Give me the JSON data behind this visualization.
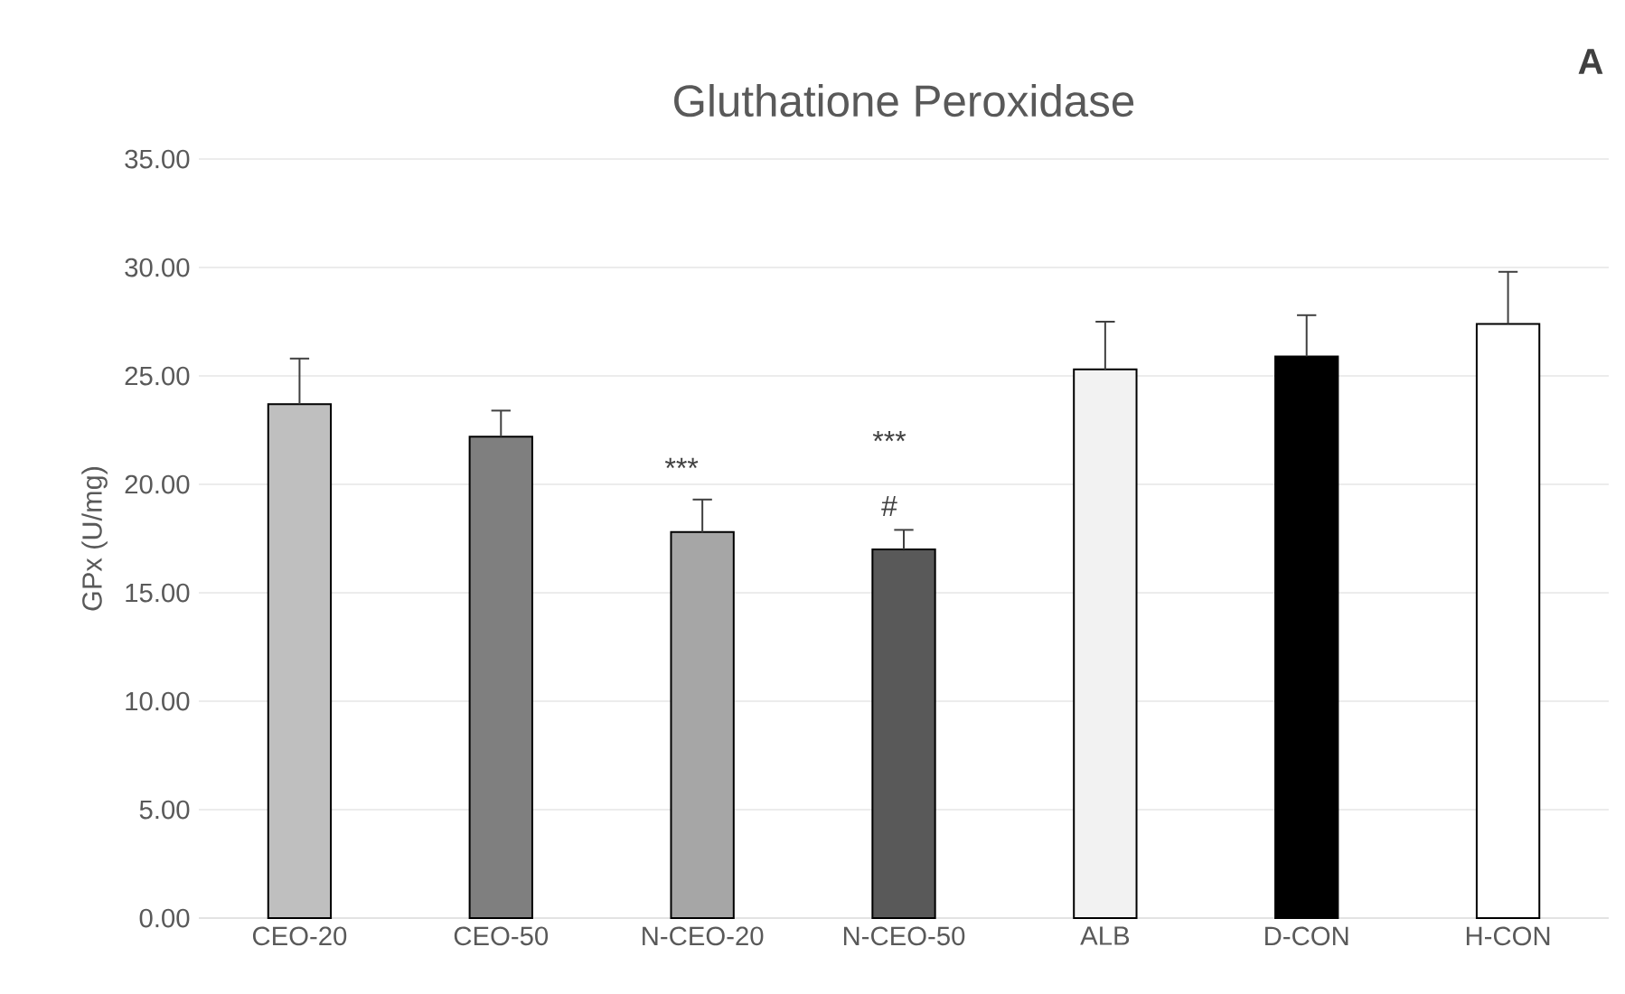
{
  "chart_data": {
    "type": "bar",
    "title": "Gluthatione Peroxidase",
    "ylabel": "GPx (U/mg)",
    "categories": [
      "CEO-20",
      "CEO-50",
      "N-CEO-20",
      "N-CEO-50",
      "ALB",
      "D-CON",
      "H-CON"
    ],
    "values": [
      23.7,
      22.2,
      17.8,
      17.0,
      25.3,
      25.9,
      27.4
    ],
    "errors": [
      [
        23.7,
        25.8
      ],
      [
        22.2,
        23.4
      ],
      [
        17.8,
        19.3
      ],
      [
        17.0,
        17.9
      ],
      [
        25.3,
        27.5
      ],
      [
        25.9,
        27.8
      ],
      [
        27.4,
        29.8
      ]
    ],
    "colors": [
      "#bfbfbf",
      "#7f7f7f",
      "#a6a6a6",
      "#595959",
      "#f2f2f2",
      "#000000",
      "#ffffff"
    ],
    "ylim": [
      0,
      35
    ],
    "yticks": [
      {
        "value": 0,
        "label": "0.00"
      },
      {
        "value": 5,
        "label": "5.00"
      },
      {
        "value": 10,
        "label": "10.00"
      },
      {
        "value": 15,
        "label": "15.00"
      },
      {
        "value": 20,
        "label": "20.00"
      },
      {
        "value": 25,
        "label": "25.00"
      },
      {
        "value": 30,
        "label": "30.00"
      },
      {
        "value": 35,
        "label": "35.00"
      }
    ],
    "grid": "y",
    "annotations": [
      "***",
      "***",
      "#",
      "A"
    ]
  }
}
